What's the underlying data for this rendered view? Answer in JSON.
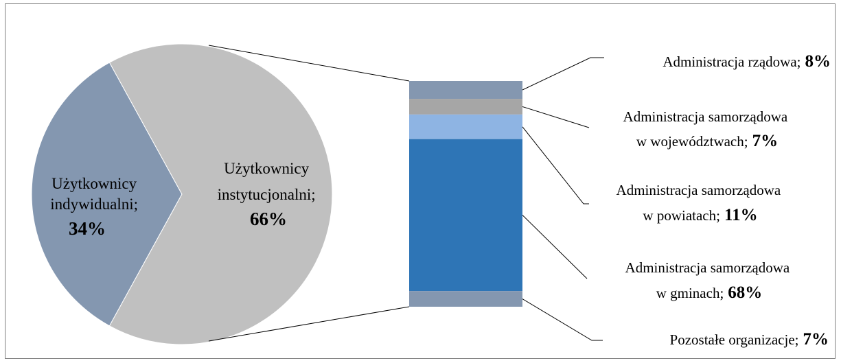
{
  "chart_data": [
    {
      "type": "pie",
      "slices": [
        {
          "line1": "Użytkownicy",
          "line2": "indywidualni;",
          "value_label": "34%",
          "value": 34,
          "color": "#8497b0"
        },
        {
          "line1": "Użytkownicy",
          "line2": "instytucjonalni;",
          "value_label": "66%",
          "value": 66,
          "color": "#c0c0c0"
        }
      ]
    },
    {
      "type": "bar",
      "stacked": true,
      "segments": [
        {
          "line1": "Administracja rządowa;",
          "line2": "",
          "value_label": "8%",
          "value": 8,
          "color": "#8497b0"
        },
        {
          "line1": "Administracja samorządowa",
          "line2": "w województwach;",
          "value_label": "7%",
          "value": 7,
          "color": "#a6a6a6"
        },
        {
          "line1": "Administracja samorządowa",
          "line2": "w powiatach;",
          "value_label": "11%",
          "value": 11,
          "color": "#8eb4e3"
        },
        {
          "line1": "Administracja samorządowa",
          "line2": "w gminach;",
          "value_label": "68%",
          "value": 68,
          "color": "#2e75b6"
        },
        {
          "line1": "Pozostałe organizacje;",
          "line2": "",
          "value_label": "7%",
          "value": 7,
          "color": "#8497b0"
        }
      ]
    }
  ]
}
